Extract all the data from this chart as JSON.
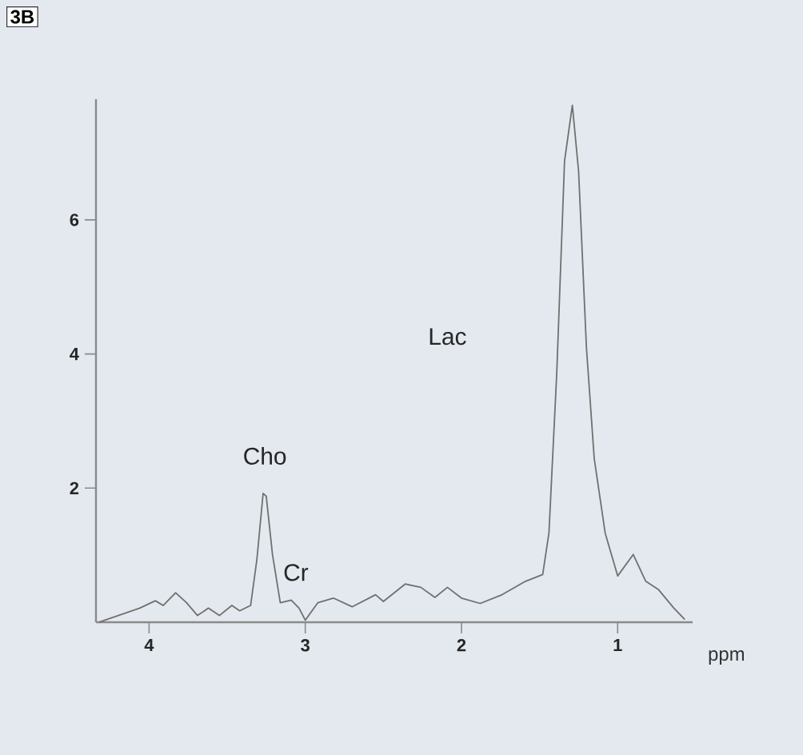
{
  "chart_data": {
    "type": "line",
    "xlabel": "ppm",
    "x": [
      4.32,
      4.06,
      3.96,
      3.91,
      3.83,
      3.76,
      3.69,
      3.62,
      3.55,
      3.47,
      3.42,
      3.35,
      3.31,
      3.27,
      3.25,
      3.21,
      3.16,
      3.09,
      3.04,
      3.0,
      2.92,
      2.82,
      2.7,
      2.55,
      2.5,
      2.36,
      2.26,
      2.17,
      2.09,
      2.0,
      1.88,
      1.74,
      1.59,
      1.48,
      1.44,
      1.39,
      1.34,
      1.29,
      1.25,
      1.2,
      1.15,
      1.08,
      1.0,
      0.9,
      0.82,
      0.74,
      0.64,
      0.57
    ],
    "series": [
      {
        "color": "#707070",
        "values": [
          0,
          0.21,
          0.32,
          0.25,
          0.44,
          0.29,
          0.1,
          0.21,
          0.1,
          0.25,
          0.17,
          0.25,
          0.93,
          1.92,
          1.88,
          1.01,
          0.29,
          0.33,
          0.21,
          0.03,
          0.29,
          0.36,
          0.23,
          0.41,
          0.31,
          0.57,
          0.52,
          0.37,
          0.52,
          0.36,
          0.28,
          0.41,
          0.61,
          0.71,
          1.33,
          3.71,
          6.88,
          7.71,
          6.72,
          4.1,
          2.44,
          1.33,
          0.69,
          1.01,
          0.61,
          0.49,
          0.21,
          0.04
        ]
      }
    ],
    "xlim": [
      4.34,
      0.52
    ],
    "ylim": [
      0,
      7.8
    ],
    "xticks": [
      4,
      3,
      2,
      1
    ],
    "yticks": [
      2,
      4,
      6
    ],
    "annotations": [
      "3B",
      "Cho",
      "Cr",
      "Lac"
    ]
  }
}
